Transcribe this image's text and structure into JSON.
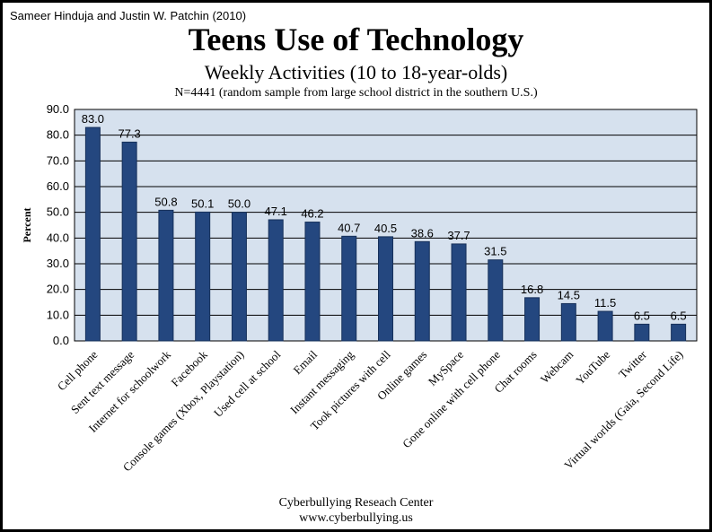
{
  "header": {
    "credit": "Sameer Hinduja and Justin W. Patchin (2010)",
    "title": "Teens Use of Technology",
    "subtitle": "Weekly Activities (10 to 18-year-olds)",
    "note": "N=4441 (random sample from large school district in the southern U.S.)"
  },
  "footer": {
    "line1": "Cyberbullying Reseach Center",
    "line2": "www.cyberbullying.us"
  },
  "colors": {
    "bar": "#24477f",
    "bar_edge": "#16305a",
    "plot_bg": "#d6e1ee",
    "grid": "#000000"
  },
  "chart_data": {
    "type": "bar",
    "title": "Teens Use of Technology",
    "subtitle": "Weekly Activities (10 to 18-year-olds)",
    "xlabel": "",
    "ylabel": "Percent",
    "ylim": [
      0,
      90
    ],
    "ytick_step": 10,
    "grid": true,
    "categories": [
      "Cell phone",
      "Sent text message",
      "Internet for schoolwork",
      "Facebook",
      "Console games (Xbox, Playstation)",
      "Used cell at school",
      "Email",
      "Instant messaging",
      "Took pictures with cell",
      "Online games",
      "MySpace",
      "Gone online with cell phone",
      "Chat rooms",
      "Webcam",
      "YouTube",
      "Twitter",
      "Virtual worlds (Gaia, Second Life)"
    ],
    "values": [
      83.0,
      77.3,
      50.8,
      50.1,
      50.0,
      47.1,
      46.2,
      40.7,
      40.5,
      38.6,
      37.7,
      31.5,
      16.8,
      14.5,
      11.5,
      6.5,
      6.5
    ]
  }
}
